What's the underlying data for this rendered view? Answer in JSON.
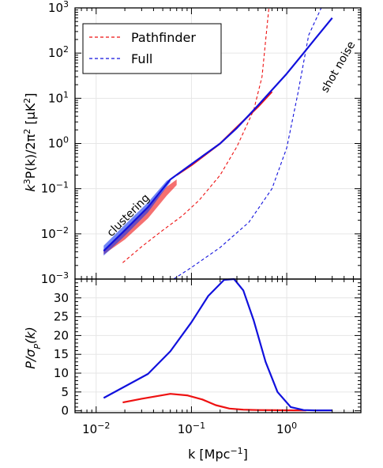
{
  "chart_data": [
    {
      "type": "line",
      "yscale": "log",
      "xscale": "log",
      "ylabel": "k^3 P(k)/2π^2 [μK^2]",
      "xlim": [
        0.006,
        6.0
      ],
      "ylim": [
        0.001,
        1000
      ],
      "y_ticks": [
        0.001,
        0.01,
        0.1,
        1,
        10,
        100,
        1000
      ],
      "x_ticks": [
        0.01,
        0.1,
        1
      ],
      "grid": true,
      "legend_position": "top-left",
      "annotations": [
        {
          "text": "clustering",
          "x": 0.0135,
          "y": 0.011,
          "rotation": -45
        },
        {
          "text": "shot noise",
          "x": 2.0,
          "y": 150,
          "rotation": -60
        }
      ],
      "series": [
        {
          "name": "Pathfinder",
          "style": "dashed",
          "color": "#ee1111",
          "x": [
            0.019,
            0.03,
            0.05,
            0.08,
            0.12,
            0.2,
            0.3,
            0.45,
            0.55,
            0.65
          ],
          "y": [
            0.0023,
            0.0052,
            0.012,
            0.025,
            0.055,
            0.2,
            0.85,
            5.5,
            30,
            1000
          ]
        },
        {
          "name": "Full",
          "style": "dashed",
          "color": "#1111dd",
          "x": [
            0.065,
            0.1,
            0.2,
            0.4,
            0.7,
            1.0,
            1.3,
            1.7,
            2.3
          ],
          "y": [
            0.001,
            0.0018,
            0.005,
            0.018,
            0.1,
            0.8,
            12,
            250,
            1000
          ]
        },
        {
          "name": "",
          "style": "band",
          "color": "#ee1111",
          "x": [
            0.012,
            0.02,
            0.035,
            0.055,
            0.07
          ],
          "y_low": [
            0.0035,
            0.0075,
            0.022,
            0.07,
            0.12
          ],
          "y_high": [
            0.0045,
            0.0115,
            0.038,
            0.11,
            0.16
          ]
        },
        {
          "name": "",
          "style": "line",
          "color": "#ee1111",
          "x": [
            0.07,
            0.1,
            0.2,
            0.3,
            0.5,
            0.7
          ],
          "y": [
            0.2,
            0.33,
            1.0,
            2.3,
            6.5,
            14
          ]
        },
        {
          "name": "",
          "style": "band",
          "color": "#1133ee",
          "x": [
            0.012,
            0.02,
            0.035,
            0.055,
            0.06
          ],
          "y_low": [
            0.0033,
            0.009,
            0.03,
            0.11,
            0.14
          ],
          "y_high": [
            0.0055,
            0.016,
            0.05,
            0.15,
            0.165
          ]
        },
        {
          "name": "",
          "style": "line",
          "color": "#1111dd",
          "x": [
            0.012,
            0.02,
            0.035,
            0.06,
            0.1,
            0.2,
            0.3,
            0.5,
            1.0,
            1.5,
            2.0,
            3.0
          ],
          "y": [
            0.0042,
            0.012,
            0.039,
            0.16,
            0.35,
            1.0,
            2.2,
            7.0,
            35,
            100,
            210,
            600
          ]
        }
      ]
    },
    {
      "type": "line",
      "xscale": "log",
      "ylabel": "P/σ_P(k)",
      "xlabel": "k [Mpc^-1]",
      "xlim": [
        0.006,
        6.0
      ],
      "ylim": [
        -0.5,
        35
      ],
      "y_ticks": [
        0,
        5,
        10,
        15,
        20,
        25,
        30
      ],
      "x_ticks": [
        0.01,
        0.1,
        1
      ],
      "grid": true,
      "series": [
        {
          "name": "",
          "color": "#ee1111",
          "x": [
            0.019,
            0.03,
            0.06,
            0.09,
            0.13,
            0.18,
            0.25,
            0.35,
            0.5,
            0.8,
            1.2,
            1.6
          ],
          "y": [
            2.2,
            3.2,
            4.5,
            4.1,
            3.0,
            1.5,
            0.6,
            0.3,
            0.2,
            0.15,
            0.1,
            0.1
          ]
        },
        {
          "name": "",
          "color": "#1111dd",
          "x": [
            0.012,
            0.035,
            0.06,
            0.1,
            0.15,
            0.22,
            0.28,
            0.35,
            0.45,
            0.6,
            0.8,
            1.1,
            1.5,
            2.0,
            3.0
          ],
          "y": [
            3.4,
            9.8,
            15.8,
            23.5,
            30.5,
            34.8,
            35.0,
            32.0,
            24.0,
            13.0,
            5.0,
            1.0,
            0.2,
            0.1,
            0.1
          ]
        }
      ]
    }
  ],
  "labels": {
    "top_ylabel_main": "k",
    "top_ylabel_exp1": "3",
    "top_ylabel_mid": "P(k)/2π",
    "top_ylabel_exp2": "2",
    "top_ylabel_end": " [μK",
    "top_ylabel_exp3": "2",
    "top_ylabel_close": "]",
    "bot_ylabel_main": "P/σ",
    "bot_ylabel_sub": "P",
    "bot_ylabel_end": "(k)",
    "xlabel_main": "k [Mpc",
    "xlabel_exp": "−1",
    "xlabel_close": "]",
    "legend_pathfinder": "Pathfinder",
    "legend_full": "Full",
    "annot_clustering": "clustering",
    "annot_shot_noise": "shot noise"
  }
}
